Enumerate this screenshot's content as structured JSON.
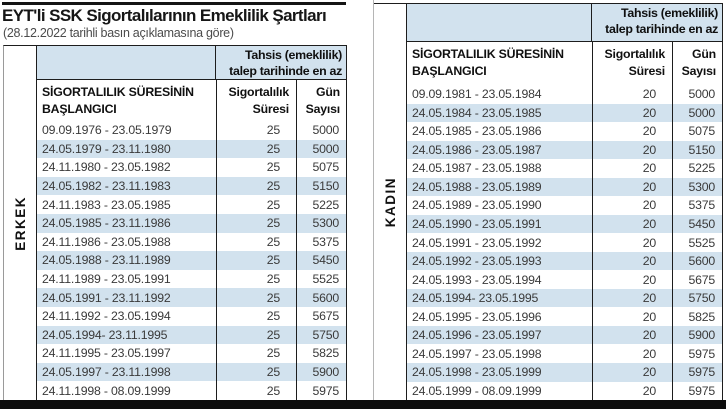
{
  "page": {
    "title": "EYT'li SSK Sigortalılarının Emeklilik Şartları",
    "subtitle": "(28.12.2022 tarihli basın açıklamasına göre)"
  },
  "headers": {
    "tahsis_line1": "Tahsis (emeklilik)",
    "tahsis_line2": "talep tarihinde en az",
    "start_line1": "SİGORTALILIK SÜRESİNİN",
    "start_line2": "BAŞLANGICI",
    "sure_line1": "Sigortalılık",
    "sure_line2": "Süresi",
    "gun_line1": "Gün",
    "gun_line2": "Sayısı"
  },
  "groups": [
    {
      "label": "ERKEK",
      "rows": [
        [
          "09.09.1976 - 23.05.1979",
          "25",
          "5000"
        ],
        [
          "24.05.1979 - 23.11.1980",
          "25",
          "5000"
        ],
        [
          "24.11.1980 - 23.05.1982",
          "25",
          "5075"
        ],
        [
          "24.05.1982 - 23.11.1983",
          "25",
          "5150"
        ],
        [
          "24.11.1983 - 23.05.1985",
          "25",
          "5225"
        ],
        [
          "24.05.1985 - 23.11.1986",
          "25",
          "5300"
        ],
        [
          "24.11.1986 - 23.05.1988",
          "25",
          "5375"
        ],
        [
          "24.05.1988 - 23.11.1989",
          "25",
          "5450"
        ],
        [
          "24.11.1989 - 23.05.1991",
          "25",
          "5525"
        ],
        [
          "24.05.1991 - 23.11.1992",
          "25",
          "5600"
        ],
        [
          "24.11.1992 - 23.05.1994",
          "25",
          "5675"
        ],
        [
          "24.05.1994- 23.11.1995",
          "25",
          "5750"
        ],
        [
          "24.11.1995 - 23.05.1997",
          "25",
          "5825"
        ],
        [
          "24.05.1997 - 23.11.1998",
          "25",
          "5900"
        ],
        [
          "24.11.1998 - 08.09.1999",
          "25",
          "5975"
        ]
      ]
    },
    {
      "label": "KADIN",
      "rows": [
        [
          "09.09.1981 - 23.05.1984",
          "20",
          "5000"
        ],
        [
          "24.05.1984 - 23.05.1985",
          "20",
          "5000"
        ],
        [
          "24.05.1985 - 23.05.1986",
          "20",
          "5075"
        ],
        [
          "24.05.1986 - 23.05.1987",
          "20",
          "5150"
        ],
        [
          "24.05.1987 - 23.05.1988",
          "20",
          "5225"
        ],
        [
          "24.05.1988 - 23.05.1989",
          "20",
          "5300"
        ],
        [
          "24.05.1989 - 23.05.1990",
          "20",
          "5375"
        ],
        [
          "24.05.1990 - 23.05.1991",
          "20",
          "5450"
        ],
        [
          "24.05.1991 - 23.05.1992",
          "20",
          "5525"
        ],
        [
          "24.05.1992 - 23.05.1993",
          "20",
          "5600"
        ],
        [
          "24.05.1993 - 23.05.1994",
          "20",
          "5675"
        ],
        [
          "24.05.1994- 23.05.1995",
          "20",
          "5750"
        ],
        [
          "24.05.1995 - 23.05.1996",
          "20",
          "5825"
        ],
        [
          "24.05.1996 - 23.05.1997",
          "20",
          "5900"
        ],
        [
          "24.05.1997 - 23.05.1998",
          "20",
          "5975"
        ],
        [
          "24.05.1998 - 23.05.1999",
          "20",
          "5975"
        ],
        [
          "24.05.1999 - 08.09.1999",
          "20",
          "5975"
        ]
      ]
    }
  ],
  "colors": {
    "stripe": "#d2e2ee",
    "border_dark": "#1d1d1d",
    "bottom_bar": "#0c0c0c"
  }
}
